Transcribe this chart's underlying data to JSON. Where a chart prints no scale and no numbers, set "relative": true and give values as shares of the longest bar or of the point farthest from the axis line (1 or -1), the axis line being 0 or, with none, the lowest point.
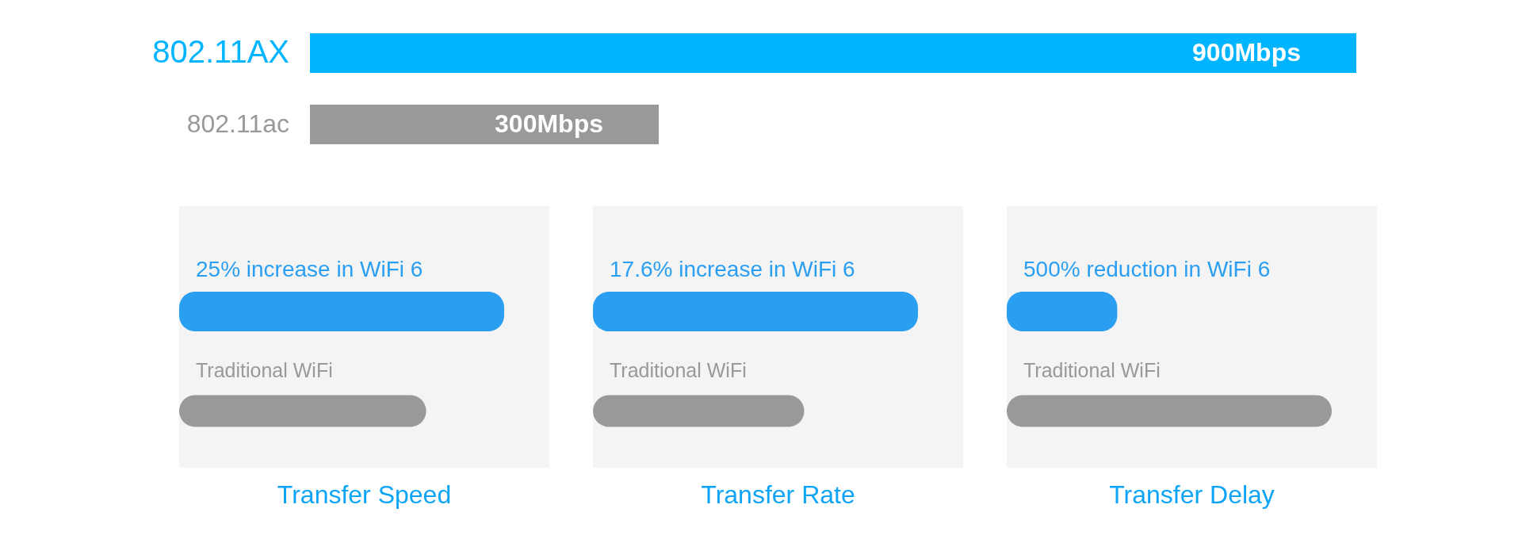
{
  "chart_data": [
    {
      "type": "bar",
      "orientation": "horizontal",
      "categories": [
        "802.11AX",
        "802.11ac"
      ],
      "values": [
        900,
        300
      ],
      "colors": [
        "#00b4ff",
        "#999999"
      ],
      "value_labels": [
        "900Mbps",
        "300Mbps"
      ]
    },
    {
      "type": "bar",
      "orientation": "horizontal",
      "relative": true,
      "title": "Transfer Speed",
      "categories": [
        "25% increase in WiFi 6",
        "Traditional WiFi"
      ],
      "values": [
        1,
        0.76
      ],
      "colors": [
        "#2a9ff2",
        "#999999"
      ]
    },
    {
      "type": "bar",
      "orientation": "horizontal",
      "relative": true,
      "title": "Transfer Rate",
      "categories": [
        "17.6% increase in WiFi 6",
        "Traditional WiFi"
      ],
      "values": [
        1,
        0.65
      ],
      "colors": [
        "#2a9ff2",
        "#999999"
      ]
    },
    {
      "type": "bar",
      "orientation": "horizontal",
      "relative": true,
      "title": "Transfer Delay",
      "categories": [
        "500% reduction in WiFi 6",
        "Traditional WiFi"
      ],
      "values": [
        0.34,
        1
      ],
      "colors": [
        "#2a9ff2",
        "#999999"
      ]
    }
  ]
}
